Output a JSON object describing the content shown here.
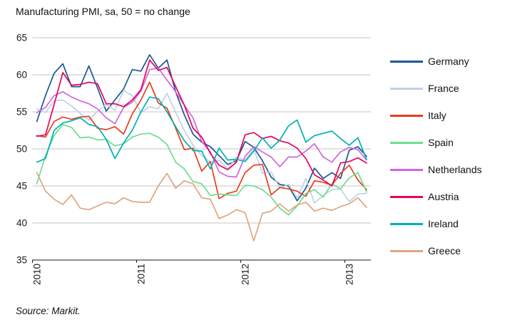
{
  "title": "Manufacturing PMI, sa, 50 = no change",
  "source": "Source: Markit.",
  "y_axis": {
    "ticks": [
      65,
      60,
      55,
      50,
      45,
      40,
      35
    ],
    "min": 35,
    "max": 65
  },
  "x_axis": {
    "tick_labels": [
      "2010",
      "2011",
      "2012",
      "2013"
    ]
  },
  "legend": {
    "position": "right"
  },
  "colors": {
    "gridline": "#C4C4C4",
    "axis": "#1A1A1A",
    "text": "#1A1A1A"
  },
  "chart_data": {
    "type": "line",
    "title": "Manufacturing PMI, sa, 50 = no change",
    "xlabel": "",
    "ylabel": "",
    "ylim": [
      35,
      65
    ],
    "grid": true,
    "legend_position": "right",
    "x_tick_labels": [
      "2010",
      "2011",
      "2012",
      "2013"
    ],
    "x": [
      "2010-01",
      "2010-02",
      "2010-03",
      "2010-04",
      "2010-05",
      "2010-06",
      "2010-07",
      "2010-08",
      "2010-09",
      "2010-10",
      "2010-11",
      "2010-12",
      "2011-01",
      "2011-02",
      "2011-03",
      "2011-04",
      "2011-05",
      "2011-06",
      "2011-07",
      "2011-08",
      "2011-09",
      "2011-10",
      "2011-11",
      "2011-12",
      "2012-01",
      "2012-02",
      "2012-03",
      "2012-04",
      "2012-05",
      "2012-06",
      "2012-07",
      "2012-08",
      "2012-09",
      "2012-10",
      "2012-11",
      "2012-12",
      "2013-01",
      "2013-02",
      "2013-03"
    ],
    "series": [
      {
        "name": "Germany",
        "color": "#1A5795",
        "values": [
          53.7,
          57.2,
          60.2,
          61.5,
          58.4,
          58.4,
          61.2,
          58.2,
          55.1,
          56.6,
          58.1,
          60.7,
          60.5,
          62.7,
          60.9,
          62.0,
          57.7,
          54.6,
          52.0,
          50.9,
          50.3,
          49.1,
          47.9,
          48.4,
          51.0,
          50.2,
          48.4,
          46.2,
          45.2,
          45.0,
          43.0,
          44.7,
          47.4,
          46.0,
          46.8,
          46.0,
          49.8,
          50.3,
          49.0
        ]
      },
      {
        "name": "France",
        "color": "#BFD2E6",
        "values": [
          55.4,
          54.9,
          56.5,
          56.6,
          55.8,
          54.8,
          53.9,
          55.1,
          56.0,
          55.2,
          57.9,
          57.2,
          54.9,
          55.7,
          55.4,
          57.5,
          54.9,
          52.5,
          50.5,
          49.1,
          48.2,
          48.5,
          47.3,
          48.9,
          48.5,
          50.0,
          46.7,
          46.9,
          44.7,
          45.2,
          43.4,
          46.0,
          42.7,
          43.7,
          44.5,
          44.6,
          42.9,
          43.9,
          44.0
        ]
      },
      {
        "name": "Italy",
        "color": "#EA3C1E",
        "values": [
          51.8,
          51.6,
          53.7,
          54.3,
          54.0,
          54.3,
          54.4,
          52.8,
          52.6,
          53.0,
          52.0,
          54.7,
          56.6,
          59.0,
          56.2,
          55.5,
          52.8,
          49.9,
          50.1,
          47.0,
          48.3,
          43.3,
          44.0,
          44.3,
          46.8,
          47.8,
          47.9,
          43.8,
          44.8,
          44.6,
          44.3,
          43.6,
          45.7,
          45.5,
          45.1,
          46.7,
          47.8,
          45.8,
          44.5
        ]
      },
      {
        "name": "Spain",
        "color": "#70DC8F",
        "values": [
          45.3,
          49.1,
          51.8,
          53.3,
          52.9,
          51.5,
          51.6,
          51.2,
          51.3,
          50.4,
          50.7,
          51.6,
          52.0,
          52.1,
          51.6,
          50.6,
          48.2,
          47.3,
          45.6,
          45.3,
          43.7,
          43.9,
          43.8,
          43.7,
          45.1,
          45.0,
          44.5,
          43.5,
          42.0,
          41.1,
          42.3,
          44.0,
          44.5,
          43.5,
          45.3,
          44.6,
          46.1,
          46.8,
          44.2
        ]
      },
      {
        "name": "Netherlands",
        "color": "#CD68DE",
        "values": [
          54.9,
          55.6,
          57.2,
          57.7,
          57.0,
          56.5,
          56.1,
          55.4,
          54.2,
          53.4,
          55.6,
          56.3,
          57.8,
          60.7,
          60.9,
          59.3,
          57.7,
          55.9,
          54.2,
          51.0,
          49.6,
          46.9,
          46.3,
          46.2,
          49.0,
          50.3,
          49.6,
          48.9,
          47.6,
          48.9,
          48.9,
          49.7,
          50.7,
          48.9,
          48.2,
          49.6,
          50.2,
          49.9,
          48.5
        ]
      },
      {
        "name": "Austria",
        "color": "#E6045C",
        "values": [
          51.7,
          51.9,
          56.0,
          60.3,
          58.6,
          58.7,
          59.0,
          58.8,
          56.1,
          56.1,
          55.7,
          56.6,
          58.0,
          62.0,
          60.6,
          61.0,
          58.4,
          55.9,
          52.8,
          51.6,
          49.4,
          47.8,
          47.2,
          48.2,
          51.9,
          52.2,
          51.4,
          51.7,
          51.1,
          50.8,
          50.1,
          48.7,
          46.5,
          45.8,
          45.0,
          48.1,
          48.3,
          48.8,
          48.1
        ]
      },
      {
        "name": "Ireland",
        "color": "#00B1B2",
        "values": [
          48.2,
          48.7,
          52.5,
          53.5,
          53.8,
          54.2,
          53.3,
          53.0,
          51.3,
          48.7,
          50.8,
          52.5,
          55.0,
          57.0,
          56.8,
          55.0,
          53.0,
          51.1,
          49.8,
          49.7,
          47.3,
          50.1,
          48.5,
          48.6,
          48.3,
          49.7,
          51.5,
          50.1,
          51.2,
          53.1,
          53.9,
          50.9,
          51.8,
          52.1,
          52.4,
          51.4,
          50.5,
          51.5,
          48.6
        ]
      },
      {
        "name": "Greece",
        "color": "#DFA581",
        "values": [
          46.8,
          44.3,
          43.2,
          42.5,
          43.8,
          42.0,
          41.8,
          42.3,
          42.8,
          42.6,
          43.4,
          42.9,
          42.8,
          42.8,
          45.0,
          46.7,
          44.7,
          45.7,
          45.3,
          43.4,
          43.2,
          40.6,
          41.1,
          41.8,
          41.4,
          37.6,
          41.3,
          41.6,
          42.6,
          41.6,
          42.4,
          42.8,
          41.6,
          42.0,
          41.7,
          42.2,
          42.6,
          43.4,
          42.1
        ]
      }
    ]
  }
}
